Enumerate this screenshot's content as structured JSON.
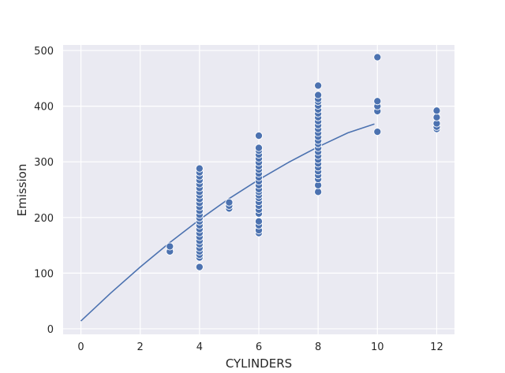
{
  "chart_data": {
    "type": "scatter",
    "xlabel": "CYLINDERS",
    "ylabel": "Emission",
    "xlim": [
      -0.6,
      12.6
    ],
    "ylim": [
      -10,
      510
    ],
    "xticks": [
      0,
      2,
      4,
      6,
      8,
      10,
      12
    ],
    "yticks": [
      0,
      100,
      200,
      300,
      400,
      500
    ],
    "grid": true,
    "background": "#eaeaf2",
    "point_color": "#4c72b0",
    "line_color": "#4c72b0",
    "points": [
      {
        "x": 3,
        "y": 139
      },
      {
        "x": 3,
        "y": 148
      },
      {
        "x": 4,
        "y": 111
      },
      {
        "x": 4,
        "y": 128
      },
      {
        "x": 4,
        "y": 133
      },
      {
        "x": 4,
        "y": 139
      },
      {
        "x": 4,
        "y": 145
      },
      {
        "x": 4,
        "y": 152
      },
      {
        "x": 4,
        "y": 158
      },
      {
        "x": 4,
        "y": 165
      },
      {
        "x": 4,
        "y": 172
      },
      {
        "x": 4,
        "y": 179
      },
      {
        "x": 4,
        "y": 186
      },
      {
        "x": 4,
        "y": 193
      },
      {
        "x": 4,
        "y": 199
      },
      {
        "x": 4,
        "y": 205
      },
      {
        "x": 4,
        "y": 212
      },
      {
        "x": 4,
        "y": 219
      },
      {
        "x": 4,
        "y": 226
      },
      {
        "x": 4,
        "y": 233
      },
      {
        "x": 4,
        "y": 240
      },
      {
        "x": 4,
        "y": 246
      },
      {
        "x": 4,
        "y": 253
      },
      {
        "x": 4,
        "y": 260
      },
      {
        "x": 4,
        "y": 267
      },
      {
        "x": 4,
        "y": 274
      },
      {
        "x": 4,
        "y": 281
      },
      {
        "x": 4,
        "y": 288
      },
      {
        "x": 5,
        "y": 216
      },
      {
        "x": 5,
        "y": 221
      },
      {
        "x": 5,
        "y": 227
      },
      {
        "x": 6,
        "y": 172
      },
      {
        "x": 6,
        "y": 177
      },
      {
        "x": 6,
        "y": 186
      },
      {
        "x": 6,
        "y": 193
      },
      {
        "x": 6,
        "y": 207
      },
      {
        "x": 6,
        "y": 214
      },
      {
        "x": 6,
        "y": 221
      },
      {
        "x": 6,
        "y": 228
      },
      {
        "x": 6,
        "y": 235
      },
      {
        "x": 6,
        "y": 240
      },
      {
        "x": 6,
        "y": 246
      },
      {
        "x": 6,
        "y": 251
      },
      {
        "x": 6,
        "y": 258
      },
      {
        "x": 6,
        "y": 265
      },
      {
        "x": 6,
        "y": 272
      },
      {
        "x": 6,
        "y": 279
      },
      {
        "x": 6,
        "y": 286
      },
      {
        "x": 6,
        "y": 292
      },
      {
        "x": 6,
        "y": 299
      },
      {
        "x": 6,
        "y": 306
      },
      {
        "x": 6,
        "y": 313
      },
      {
        "x": 6,
        "y": 320
      },
      {
        "x": 6,
        "y": 325
      },
      {
        "x": 6,
        "y": 347
      },
      {
        "x": 8,
        "y": 246
      },
      {
        "x": 8,
        "y": 258
      },
      {
        "x": 8,
        "y": 269
      },
      {
        "x": 8,
        "y": 276
      },
      {
        "x": 8,
        "y": 283
      },
      {
        "x": 8,
        "y": 290
      },
      {
        "x": 8,
        "y": 297
      },
      {
        "x": 8,
        "y": 304
      },
      {
        "x": 8,
        "y": 311
      },
      {
        "x": 8,
        "y": 318
      },
      {
        "x": 8,
        "y": 325
      },
      {
        "x": 8,
        "y": 332
      },
      {
        "x": 8,
        "y": 338
      },
      {
        "x": 8,
        "y": 345
      },
      {
        "x": 8,
        "y": 352
      },
      {
        "x": 8,
        "y": 359
      },
      {
        "x": 8,
        "y": 366
      },
      {
        "x": 8,
        "y": 373
      },
      {
        "x": 8,
        "y": 380
      },
      {
        "x": 8,
        "y": 387
      },
      {
        "x": 8,
        "y": 394
      },
      {
        "x": 8,
        "y": 401
      },
      {
        "x": 8,
        "y": 408
      },
      {
        "x": 8,
        "y": 413
      },
      {
        "x": 8,
        "y": 420
      },
      {
        "x": 8,
        "y": 437
      },
      {
        "x": 10,
        "y": 354
      },
      {
        "x": 10,
        "y": 391
      },
      {
        "x": 10,
        "y": 400
      },
      {
        "x": 10,
        "y": 409
      },
      {
        "x": 10,
        "y": 488
      },
      {
        "x": 12,
        "y": 359
      },
      {
        "x": 12,
        "y": 363
      },
      {
        "x": 12,
        "y": 369
      },
      {
        "x": 12,
        "y": 380
      },
      {
        "x": 12,
        "y": 392
      }
    ],
    "fit_line": {
      "x": [
        0,
        1,
        2,
        3,
        4,
        5,
        6,
        7,
        8,
        9,
        9.9
      ],
      "y": [
        14,
        64,
        111,
        155,
        196,
        234,
        268,
        299,
        327,
        352,
        368
      ]
    }
  }
}
